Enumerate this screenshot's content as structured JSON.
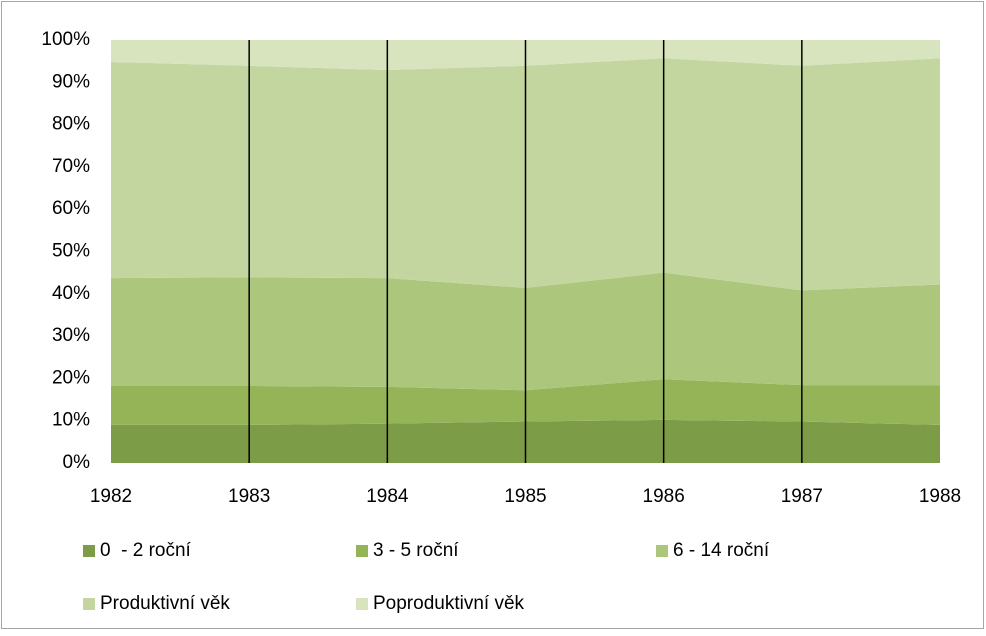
{
  "chart_data": {
    "type": "stacked_area",
    "categories": [
      "1982",
      "1983",
      "1984",
      "1985",
      "1986",
      "1987",
      "1988"
    ],
    "series": [
      {
        "name": "0  - 2 roční",
        "color": "#7d9c47",
        "values": [
          9,
          9,
          9.3,
          9.8,
          10.2,
          9.8,
          9
        ]
      },
      {
        "name": "3 - 5 roční",
        "color": "#95b458",
        "values": [
          9.2,
          9.2,
          8.7,
          7.4,
          9.6,
          8.6,
          9.4
        ]
      },
      {
        "name": "6 - 14 roční",
        "color": "#acc67b",
        "values": [
          25.5,
          25.7,
          25.7,
          24.2,
          25.2,
          22.4,
          23.8
        ]
      },
      {
        "name": "Produktivní věk",
        "color": "#c4d6a0",
        "values": [
          51.1,
          50,
          49.2,
          52.5,
          50.7,
          53.1,
          53.5
        ]
      },
      {
        "name": "Poproduktivní věk",
        "color": "#d8e4be",
        "values": [
          5.2,
          6.1,
          7.1,
          6.1,
          4.3,
          6.1,
          4.3
        ]
      }
    ],
    "ylim": [
      0,
      100
    ],
    "yticks": [
      {
        "value": 0,
        "label": "0%"
      },
      {
        "value": 10,
        "label": "10%"
      },
      {
        "value": 20,
        "label": "20%"
      },
      {
        "value": 30,
        "label": "30%"
      },
      {
        "value": 40,
        "label": "40%"
      },
      {
        "value": 50,
        "label": "50%"
      },
      {
        "value": 60,
        "label": "60%"
      },
      {
        "value": 70,
        "label": "70%"
      },
      {
        "value": 80,
        "label": "80%"
      },
      {
        "value": 90,
        "label": "90%"
      },
      {
        "value": 100,
        "label": "100%"
      }
    ],
    "x_grid": true
  }
}
